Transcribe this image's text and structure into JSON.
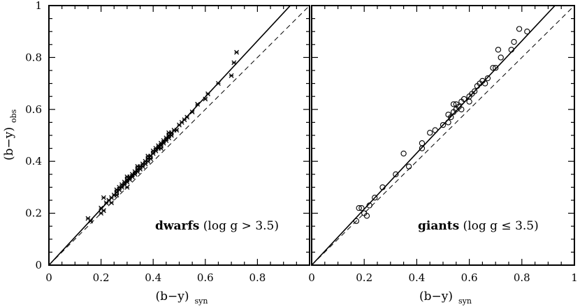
{
  "chart_data": [
    {
      "type": "scatter",
      "panel": "left",
      "xlabel": "(b−y)",
      "xlabel_sub": "syn",
      "ylabel": "(b−y)",
      "ylabel_sub": "obs",
      "xlim": [
        0,
        1
      ],
      "ylim": [
        0,
        1
      ],
      "x_ticks": [
        "0",
        "0.2",
        "0.4",
        "0.6",
        "0.8"
      ],
      "y_ticks": [
        "0",
        "0.2",
        "0.4",
        "0.6",
        "0.8",
        "1"
      ],
      "annotation": {
        "bold": "dwarfs",
        "rest": " (log g > 3.5)"
      },
      "marker": "cross",
      "fit_line": {
        "slope": 1.08,
        "intercept": 0.0
      },
      "one_to_one": true,
      "points": [
        [
          0.15,
          0.18
        ],
        [
          0.16,
          0.17
        ],
        [
          0.2,
          0.2
        ],
        [
          0.2,
          0.22
        ],
        [
          0.21,
          0.21
        ],
        [
          0.21,
          0.26
        ],
        [
          0.22,
          0.24
        ],
        [
          0.23,
          0.25
        ],
        [
          0.24,
          0.26
        ],
        [
          0.25,
          0.27
        ],
        [
          0.26,
          0.28
        ],
        [
          0.26,
          0.29
        ],
        [
          0.27,
          0.3
        ],
        [
          0.27,
          0.29
        ],
        [
          0.28,
          0.3
        ],
        [
          0.28,
          0.31
        ],
        [
          0.29,
          0.32
        ],
        [
          0.29,
          0.31
        ],
        [
          0.3,
          0.33
        ],
        [
          0.3,
          0.32
        ],
        [
          0.3,
          0.34
        ],
        [
          0.31,
          0.34
        ],
        [
          0.31,
          0.33
        ],
        [
          0.32,
          0.35
        ],
        [
          0.32,
          0.34
        ],
        [
          0.33,
          0.36
        ],
        [
          0.33,
          0.35
        ],
        [
          0.34,
          0.37
        ],
        [
          0.34,
          0.36
        ],
        [
          0.35,
          0.38
        ],
        [
          0.35,
          0.37
        ],
        [
          0.36,
          0.39
        ],
        [
          0.36,
          0.38
        ],
        [
          0.37,
          0.4
        ],
        [
          0.37,
          0.39
        ],
        [
          0.38,
          0.41
        ],
        [
          0.38,
          0.42
        ],
        [
          0.39,
          0.42
        ],
        [
          0.39,
          0.41
        ],
        [
          0.4,
          0.43
        ],
        [
          0.4,
          0.44
        ],
        [
          0.41,
          0.45
        ],
        [
          0.41,
          0.44
        ],
        [
          0.42,
          0.46
        ],
        [
          0.42,
          0.45
        ],
        [
          0.43,
          0.47
        ],
        [
          0.43,
          0.46
        ],
        [
          0.44,
          0.48
        ],
        [
          0.44,
          0.47
        ],
        [
          0.45,
          0.49
        ],
        [
          0.45,
          0.48
        ],
        [
          0.46,
          0.5
        ],
        [
          0.46,
          0.49
        ],
        [
          0.47,
          0.51
        ],
        [
          0.47,
          0.5
        ],
        [
          0.48,
          0.52
        ],
        [
          0.49,
          0.52
        ],
        [
          0.5,
          0.54
        ],
        [
          0.51,
          0.55
        ],
        [
          0.52,
          0.56
        ],
        [
          0.53,
          0.57
        ],
        [
          0.55,
          0.59
        ],
        [
          0.57,
          0.62
        ],
        [
          0.6,
          0.64
        ],
        [
          0.61,
          0.66
        ],
        [
          0.65,
          0.7
        ],
        [
          0.7,
          0.73
        ],
        [
          0.71,
          0.78
        ],
        [
          0.72,
          0.82
        ],
        [
          0.46,
          0.51
        ],
        [
          0.43,
          0.45
        ],
        [
          0.38,
          0.4
        ],
        [
          0.34,
          0.38
        ],
        [
          0.3,
          0.3
        ],
        [
          0.26,
          0.27
        ],
        [
          0.24,
          0.24
        ]
      ]
    },
    {
      "type": "scatter",
      "panel": "right",
      "xlabel": "(b−y)",
      "xlabel_sub": "syn",
      "xlim": [
        0,
        1
      ],
      "ylim": [
        0,
        1
      ],
      "x_ticks": [
        "0",
        "0.2",
        "0.4",
        "0.6",
        "0.8",
        "1"
      ],
      "annotation": {
        "bold": "giants",
        "rest": " (log g ≤ 3.5)"
      },
      "marker": "circle",
      "fit_line": {
        "slope": 1.08,
        "intercept": 0.0
      },
      "one_to_one": true,
      "points": [
        [
          0.17,
          0.17
        ],
        [
          0.18,
          0.22
        ],
        [
          0.19,
          0.22
        ],
        [
          0.2,
          0.2
        ],
        [
          0.21,
          0.19
        ],
        [
          0.22,
          0.23
        ],
        [
          0.24,
          0.26
        ],
        [
          0.27,
          0.3
        ],
        [
          0.32,
          0.35
        ],
        [
          0.35,
          0.43
        ],
        [
          0.37,
          0.38
        ],
        [
          0.42,
          0.45
        ],
        [
          0.42,
          0.47
        ],
        [
          0.45,
          0.51
        ],
        [
          0.47,
          0.52
        ],
        [
          0.5,
          0.54
        ],
        [
          0.52,
          0.58
        ],
        [
          0.53,
          0.57
        ],
        [
          0.54,
          0.59
        ],
        [
          0.55,
          0.6
        ],
        [
          0.55,
          0.62
        ],
        [
          0.56,
          0.61
        ],
        [
          0.57,
          0.6
        ],
        [
          0.57,
          0.63
        ],
        [
          0.58,
          0.64
        ],
        [
          0.6,
          0.65
        ],
        [
          0.61,
          0.66
        ],
        [
          0.62,
          0.67
        ],
        [
          0.63,
          0.69
        ],
        [
          0.64,
          0.7
        ],
        [
          0.65,
          0.71
        ],
        [
          0.66,
          0.7
        ],
        [
          0.67,
          0.72
        ],
        [
          0.69,
          0.76
        ],
        [
          0.7,
          0.76
        ],
        [
          0.71,
          0.83
        ],
        [
          0.72,
          0.8
        ],
        [
          0.76,
          0.83
        ],
        [
          0.77,
          0.86
        ],
        [
          0.79,
          0.91
        ],
        [
          0.82,
          0.9
        ],
        [
          0.54,
          0.62
        ],
        [
          0.6,
          0.63
        ],
        [
          0.52,
          0.55
        ]
      ]
    }
  ]
}
